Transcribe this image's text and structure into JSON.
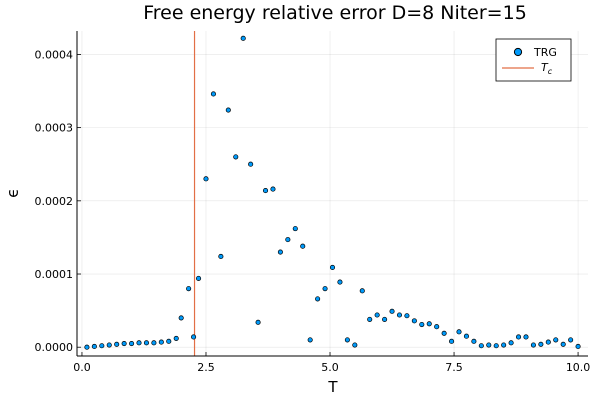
{
  "chart_data": {
    "type": "scatter",
    "title": "Free energy relative error D=8 Niter=15",
    "xlabel": "T",
    "ylabel": "ϵ",
    "xlim": [
      -0.1,
      10.2
    ],
    "ylim": [
      -1.2e-05,
      0.000432
    ],
    "xticks": [
      0.0,
      2.5,
      5.0,
      7.5,
      10.0
    ],
    "xtick_labels": [
      "0.0",
      "2.5",
      "5.0",
      "7.5",
      "10.0"
    ],
    "yticks": [
      0.0,
      0.0001,
      0.0002,
      0.0003,
      0.0004
    ],
    "ytick_labels": [
      "0.0000",
      "0.0001",
      "0.0002",
      "0.0003",
      "0.0004"
    ],
    "grid": true,
    "legend_position": "top-right",
    "tc": 2.269,
    "series": [
      {
        "name": "TRG",
        "color": "#009AFA",
        "x": [
          0.1,
          0.25,
          0.4,
          0.55,
          0.7,
          0.85,
          1.0,
          1.15,
          1.3,
          1.45,
          1.6,
          1.75,
          1.9,
          2.0,
          2.15,
          2.25,
          2.35,
          2.5,
          2.65,
          2.8,
          2.95,
          3.1,
          3.25,
          3.4,
          3.55,
          3.7,
          3.85,
          4.0,
          4.15,
          4.3,
          4.45,
          4.6,
          4.75,
          4.9,
          5.05,
          5.2,
          5.35,
          5.5,
          5.65,
          5.8,
          5.95,
          6.1,
          6.25,
          6.4,
          6.55,
          6.7,
          6.85,
          7.0,
          7.15,
          7.3,
          7.45,
          7.6,
          7.75,
          7.9,
          8.05,
          8.2,
          8.35,
          8.5,
          8.65,
          8.8,
          8.95,
          9.1,
          9.25,
          9.4,
          9.55,
          9.7,
          9.85,
          10.0
        ],
        "y": [
          0.0,
          1e-06,
          2e-06,
          3e-06,
          4e-06,
          5e-06,
          5e-06,
          6e-06,
          6e-06,
          6e-06,
          7e-06,
          8e-06,
          1.2e-05,
          4e-05,
          8e-05,
          1.4e-05,
          9.4e-05,
          0.00023,
          0.000346,
          0.000124,
          0.000324,
          0.00026,
          0.000422,
          0.00025,
          3.4e-05,
          0.000214,
          0.000216,
          0.00013,
          0.000147,
          0.000162,
          0.000138,
          1e-05,
          6.6e-05,
          8e-05,
          0.000109,
          8.9e-05,
          1e-05,
          3e-06,
          7.7e-05,
          3.8e-05,
          4.4e-05,
          3.8e-05,
          4.9e-05,
          4.4e-05,
          4.3e-05,
          3.6e-05,
          3.1e-05,
          3.2e-05,
          2.8e-05,
          1.9e-05,
          8e-06,
          2.1e-05,
          1.5e-05,
          8e-06,
          2e-06,
          3e-06,
          2e-06,
          3e-06,
          6e-06,
          1.4e-05,
          1.4e-05,
          3e-06,
          4e-06,
          7e-06,
          1e-05,
          4e-06,
          1e-05,
          1e-06
        ]
      }
    ],
    "vline": {
      "name": "T_c",
      "color": "#E26F46"
    }
  }
}
